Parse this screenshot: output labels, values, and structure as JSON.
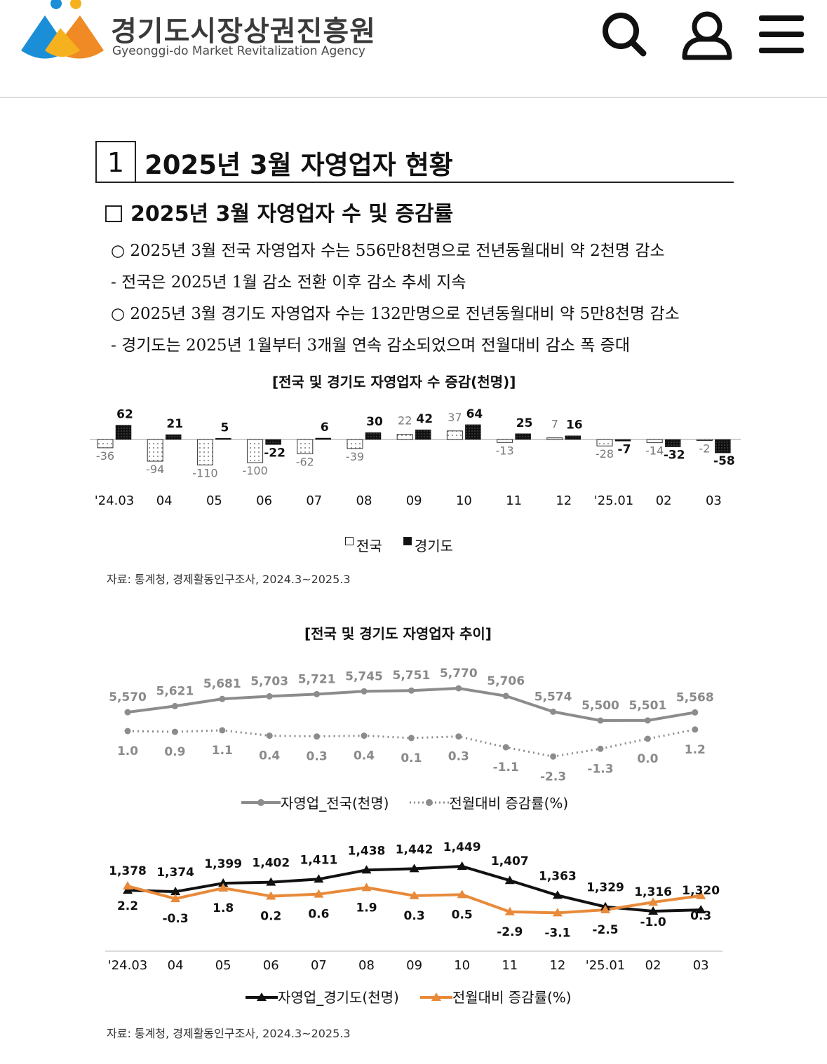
{
  "header": {
    "org_name_ko": "경기도시장상권진흥원",
    "org_name_en": "Gyeonggi-do Market Revitalization Agency",
    "icons": [
      "search-icon",
      "user-icon",
      "menu-icon"
    ],
    "logo_colors": [
      "#1a8fd8",
      "#f6b21e",
      "#f08a24"
    ]
  },
  "section": {
    "number": "1",
    "title": "2025년 3월 자영업자 현황",
    "subtitle": "2025년 3월 자영업자 수 및 증감률",
    "bullets": [
      "○ 2025년 3월 전국 자영업자 수는 556만8천명으로 전년동월대비 약 2천명 감소",
      " - 전국은 2025년 1월 감소 전환 이후 감소 추세 지속",
      "○ 2025년 3월 경기도 자영업자 수는 132만명으로 전년동월대비 약 5만8천명 감소",
      " - 경기도는 2025년 1월부터 3개월 연속 감소되었으며 전월대비 감소 폭 증대"
    ]
  },
  "chart1_title": "[전국 및 경기도 자영업자 수 증감(천명)]",
  "chart2_title": "[전국 및 경기도 자영업자 추이]",
  "source": "자료: 통계청, 경제활동인구조사, 2024.3~2025.3",
  "chart_data": [
    {
      "type": "bar",
      "title": "[전국 및 경기도 자영업자 수 증감(천명)]",
      "categories": [
        "'24.03",
        "04",
        "05",
        "06",
        "07",
        "08",
        "09",
        "10",
        "11",
        "12",
        "'25.01",
        "02",
        "03"
      ],
      "series": [
        {
          "name": "전국",
          "values": [
            -36,
            -94,
            -110,
            -100,
            -62,
            -39,
            22,
            37,
            -13,
            7,
            -28,
            -14,
            -2
          ],
          "color": "#ffffff",
          "stroke": "#333333",
          "pattern": "dotted"
        },
        {
          "name": "경기도",
          "values": [
            62,
            21,
            5,
            -22,
            6,
            30,
            42,
            64,
            25,
            16,
            -7,
            -32,
            -58
          ],
          "color": "#111111",
          "pattern": "speckled"
        }
      ],
      "legend_position": "bottom",
      "grid": false
    },
    {
      "type": "line",
      "title": "[전국 및 경기도 자영업자 추이]",
      "categories": [
        "'24.03",
        "04",
        "05",
        "06",
        "07",
        "08",
        "09",
        "10",
        "11",
        "12",
        "'25.01",
        "02",
        "03"
      ],
      "series": [
        {
          "name": "자영업_전국(천명)",
          "values": [
            5570,
            5621,
            5681,
            5703,
            5721,
            5745,
            5751,
            5770,
            5706,
            5574,
            5500,
            5501,
            5568
          ],
          "labels": [
            "5,570",
            "5,621",
            "5,681",
            "5,703",
            "5,721",
            "5,745",
            "5,751",
            "5,770",
            "5,706",
            "5,574",
            "5,500",
            "5,501",
            "5,568"
          ],
          "color": "#8c8c8c",
          "marker": "circle",
          "style": "solid"
        },
        {
          "name": "전월대비 증감률(%)",
          "values": [
            1.0,
            0.9,
            1.1,
            0.4,
            0.3,
            0.4,
            0.1,
            0.3,
            -1.1,
            -2.3,
            -1.3,
            0.0,
            1.2
          ],
          "labels": [
            "1.0",
            "0.9",
            "1.1",
            "0.4",
            "0.3",
            "0.4",
            "0.1",
            "0.3",
            "-1.1",
            "-2.3",
            "-1.3",
            "0.0",
            "1.2"
          ],
          "color": "#8c8c8c",
          "marker": "circle",
          "style": "dotted"
        }
      ],
      "legend_position": "bottom",
      "grid": false
    },
    {
      "type": "line",
      "categories": [
        "'24.03",
        "04",
        "05",
        "06",
        "07",
        "08",
        "09",
        "10",
        "11",
        "12",
        "'25.01",
        "02",
        "03"
      ],
      "series": [
        {
          "name": "자영업_경기도(천명)",
          "values": [
            1378,
            1374,
            1399,
            1402,
            1411,
            1438,
            1442,
            1449,
            1407,
            1363,
            1329,
            1316,
            1320
          ],
          "labels": [
            "1,378",
            "1,374",
            "1,399",
            "1,402",
            "1,411",
            "1,438",
            "1,442",
            "1,449",
            "1,407",
            "1,363",
            "1,329",
            "1,316",
            "1,320"
          ],
          "color": "#111111",
          "marker": "triangle",
          "style": "solid"
        },
        {
          "name": "전월대비 증감률(%)",
          "values": [
            2.2,
            -0.3,
            1.8,
            0.2,
            0.6,
            1.9,
            0.3,
            0.5,
            -2.9,
            -3.1,
            -2.5,
            -1.0,
            0.3
          ],
          "labels": [
            "2.2",
            "-0.3",
            "1.8",
            "0.2",
            "0.6",
            "1.9",
            "0.3",
            "0.5",
            "-2.9",
            "-3.1",
            "-2.5",
            "-1.0",
            "0.3"
          ],
          "color": "#e88a3a",
          "marker": "triangle",
          "style": "solid"
        }
      ],
      "legend_position": "bottom",
      "grid": false
    }
  ]
}
